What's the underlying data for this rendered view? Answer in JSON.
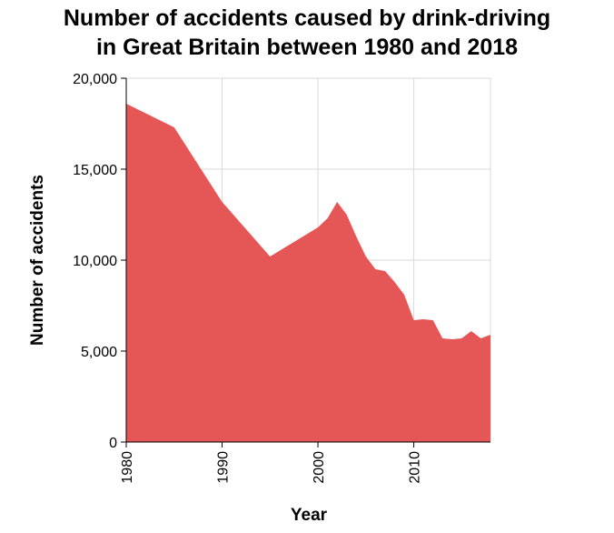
{
  "chart_data": {
    "type": "area",
    "title": "Number of accidents caused by drink-driving in Great Britain between 1980 and 2018",
    "title_lines": [
      "Number of accidents caused by drink-driving",
      "in Great Britain between 1980 and 2018"
    ],
    "xlabel": "Year",
    "ylabel": "Number of accidents",
    "xlim": [
      1980,
      2018
    ],
    "ylim": [
      0,
      20000
    ],
    "x_ticks": [
      1980,
      1990,
      2000,
      2010
    ],
    "x_tick_labels": [
      "1980",
      "1990",
      "2000",
      "2010"
    ],
    "y_ticks": [
      0,
      5000,
      10000,
      15000,
      20000
    ],
    "y_tick_labels": [
      "0",
      "5,000",
      "10,000",
      "15,000",
      "20,000"
    ],
    "grid": true,
    "fill_color": "#e55656",
    "x": [
      1980,
      1985,
      1990,
      1995,
      2000,
      2001,
      2002,
      2003,
      2004,
      2005,
      2006,
      2007,
      2008,
      2009,
      2010,
      2011,
      2012,
      2013,
      2014,
      2015,
      2016,
      2017,
      2018
    ],
    "values": [
      18600,
      17300,
      13200,
      10200,
      11800,
      12300,
      13200,
      12500,
      11300,
      10200,
      9500,
      9400,
      8800,
      8100,
      6700,
      6750,
      6700,
      5700,
      5650,
      5700,
      6100,
      5700,
      5900
    ]
  }
}
